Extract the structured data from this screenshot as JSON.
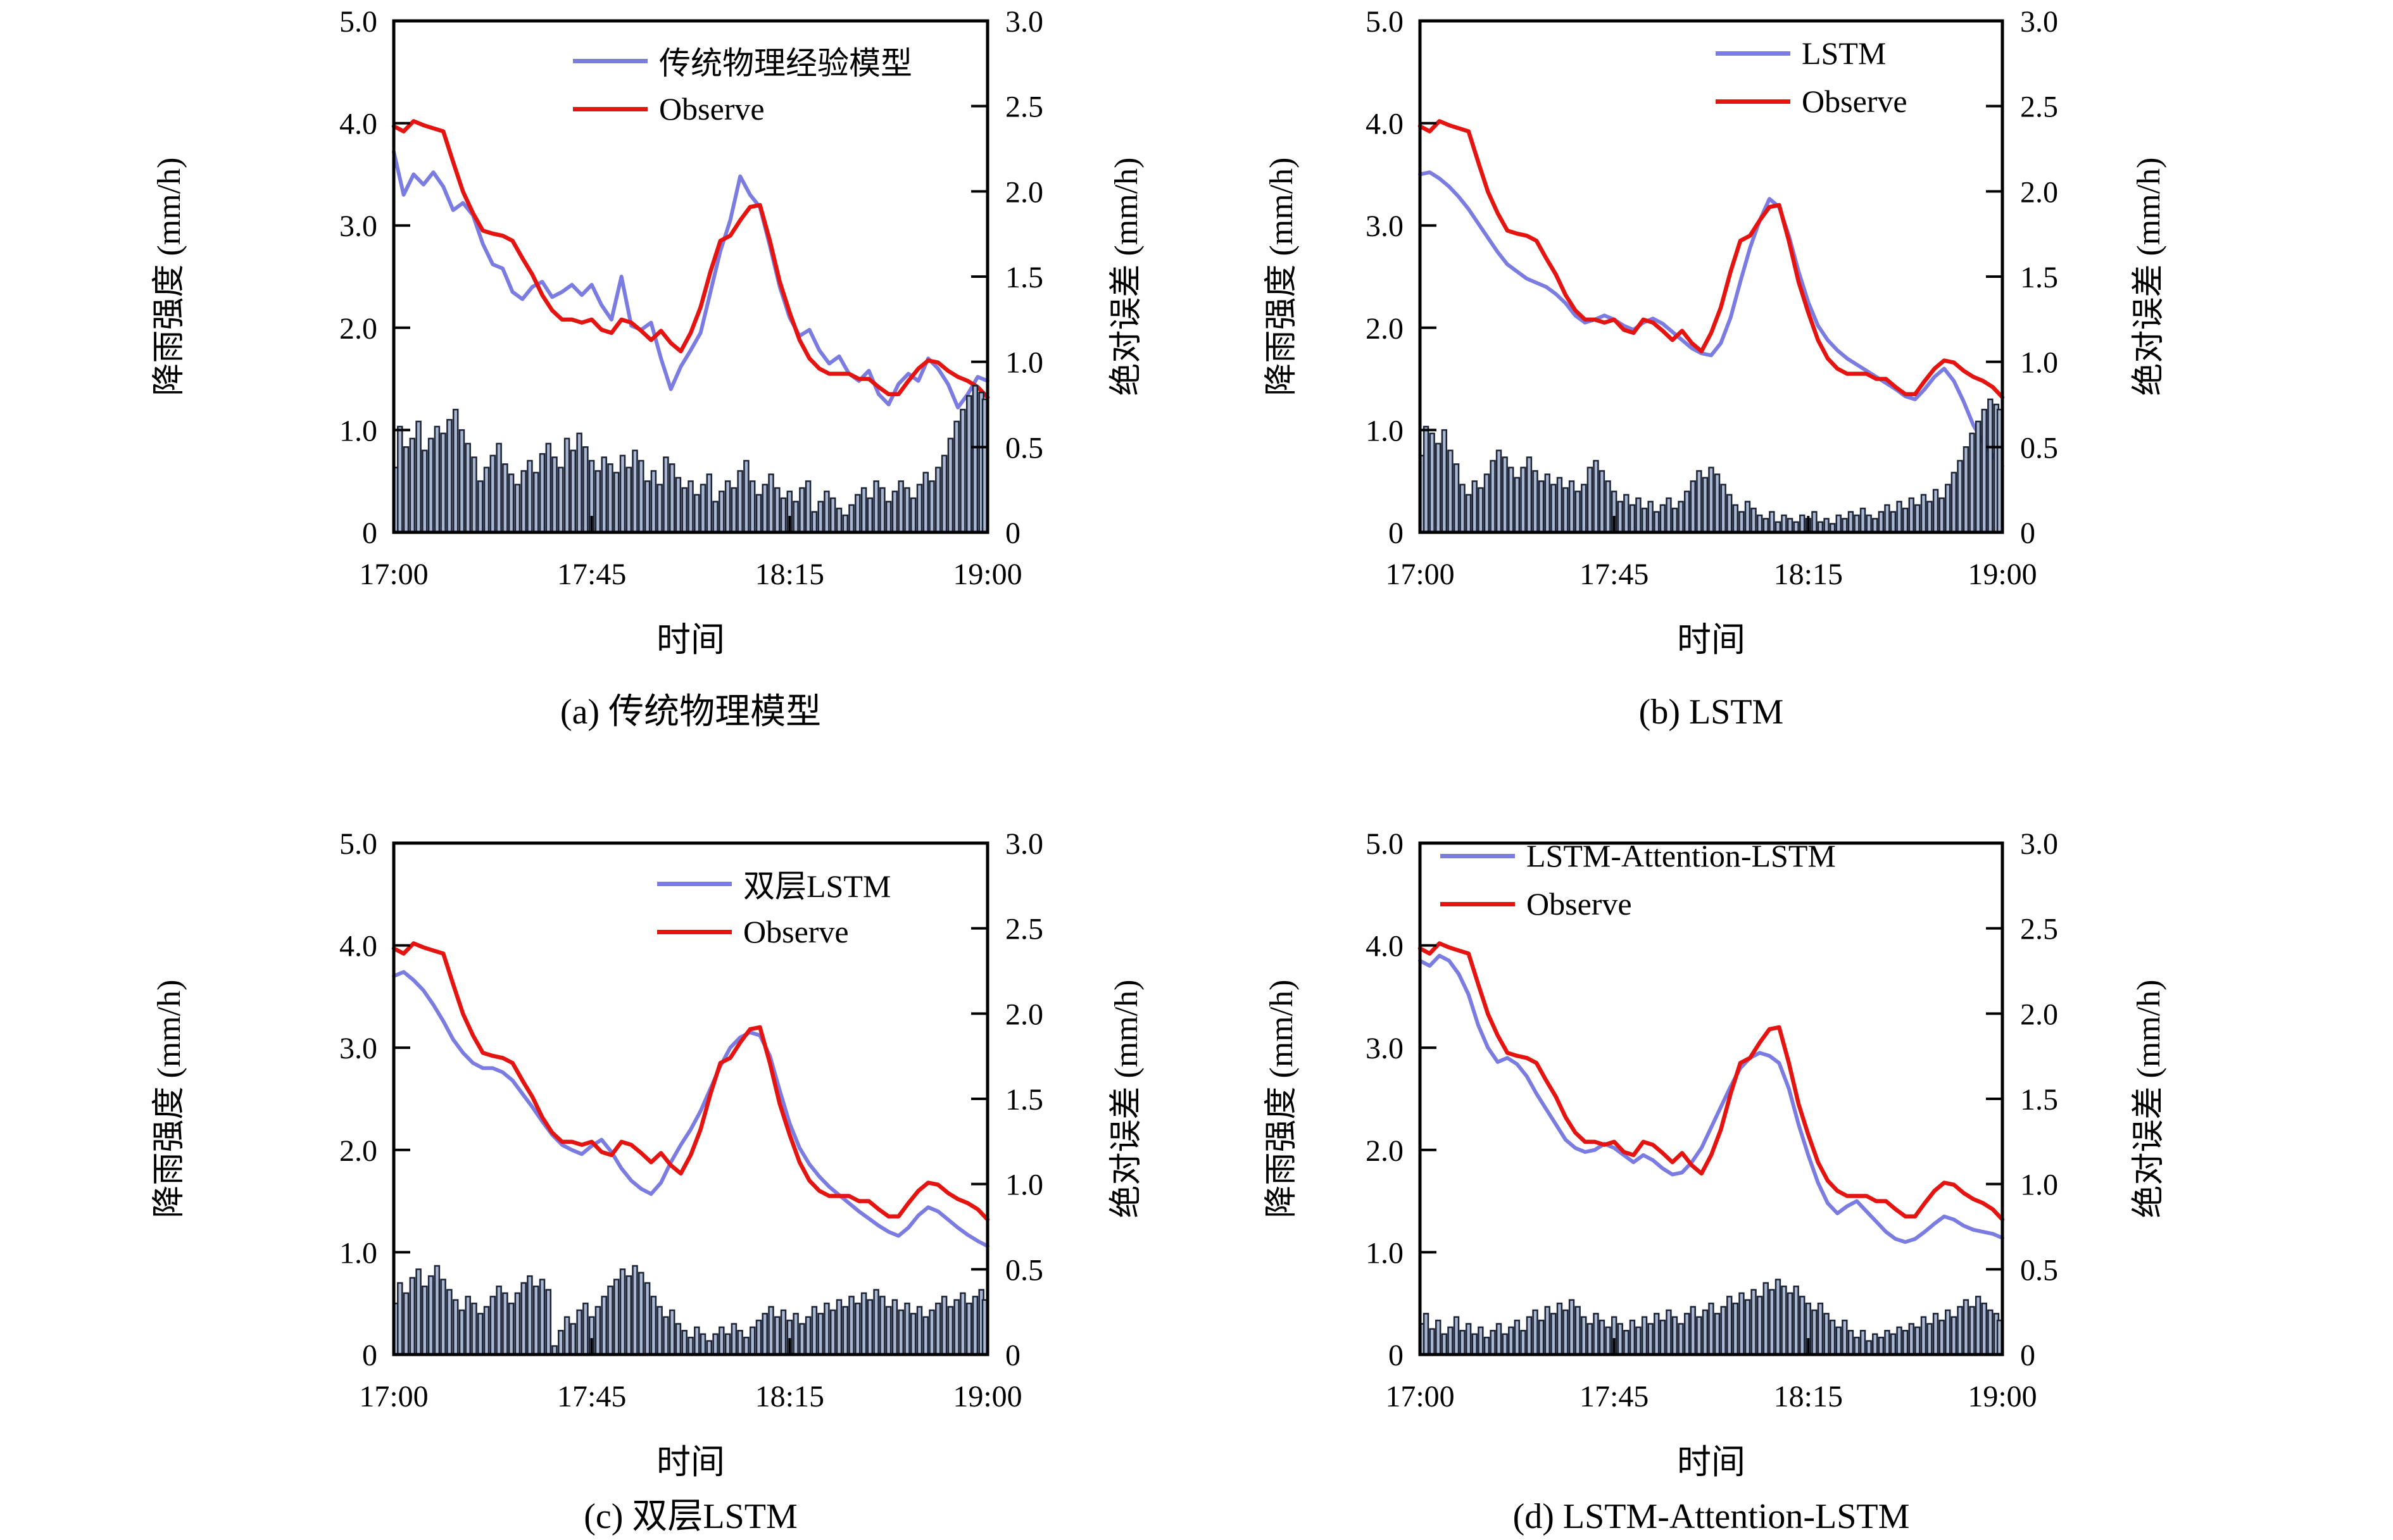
{
  "figure": {
    "xlabel": "时间",
    "ylabel_left": "降雨强度 (mm/h)",
    "ylabel_right": "绝对误差 (mm/h)",
    "x_ticks": [
      "17:00",
      "17:45",
      "18:15",
      "19:00"
    ],
    "y_ticks_left": [
      "5.0",
      "4.0",
      "3.0",
      "2.0",
      "1.0",
      "0"
    ],
    "y_ticks_right": [
      "3.0",
      "2.5",
      "2.0",
      "1.5",
      "1.0",
      "0.5",
      "0"
    ],
    "colors": {
      "model_line": "#7b7ce1",
      "observe_line": "#e51410",
      "bar_fill": "#a8b6d2",
      "bar_stroke": "#1a2233",
      "axis": "#000000"
    }
  },
  "chart_data": [
    {
      "id": "a",
      "type": "line+bar",
      "caption": "(a) 传统物理模型",
      "legend": [
        "传统物理经验模型",
        "Observe"
      ],
      "x_range": [
        "17:00",
        "19:00"
      ],
      "ylim_left": [
        0,
        5.0
      ],
      "ylim_right": [
        0,
        3.0
      ],
      "model_values": [
        3.72,
        3.3,
        3.5,
        3.4,
        3.52,
        3.38,
        3.15,
        3.22,
        3.1,
        2.82,
        2.62,
        2.58,
        2.35,
        2.28,
        2.4,
        2.45,
        2.3,
        2.35,
        2.42,
        2.32,
        2.42,
        2.22,
        2.08,
        2.5,
        2.02,
        1.98,
        2.05,
        1.7,
        1.4,
        1.62,
        1.78,
        1.95,
        2.35,
        2.75,
        3.05,
        3.48,
        3.3,
        3.18,
        2.8,
        2.4,
        2.1,
        1.92,
        1.98,
        1.78,
        1.65,
        1.72,
        1.55,
        1.48,
        1.58,
        1.35,
        1.25,
        1.45,
        1.55,
        1.48,
        1.7,
        1.6,
        1.45,
        1.22,
        1.35,
        1.52,
        1.48
      ],
      "error_values": [
        0.38,
        0.62,
        0.5,
        0.55,
        0.65,
        0.48,
        0.55,
        0.62,
        0.58,
        0.66,
        0.72,
        0.6,
        0.52,
        0.44,
        0.3,
        0.38,
        0.45,
        0.52,
        0.4,
        0.34,
        0.28,
        0.36,
        0.42,
        0.35,
        0.46,
        0.52,
        0.44,
        0.38,
        0.55,
        0.48,
        0.58,
        0.5,
        0.42,
        0.36,
        0.44,
        0.4,
        0.35,
        0.45,
        0.38,
        0.48,
        0.42,
        0.3,
        0.36,
        0.28,
        0.44,
        0.4,
        0.32,
        0.26,
        0.3,
        0.22,
        0.28,
        0.34,
        0.18,
        0.24,
        0.3,
        0.26,
        0.36,
        0.42,
        0.3,
        0.22,
        0.28,
        0.34,
        0.26,
        0.2,
        0.24,
        0.18,
        0.26,
        0.3,
        0.12,
        0.18,
        0.24,
        0.2,
        0.14,
        0.1,
        0.16,
        0.22,
        0.26,
        0.2,
        0.3,
        0.26,
        0.18,
        0.24,
        0.3,
        0.26,
        0.2,
        0.28,
        0.35,
        0.3,
        0.38,
        0.45,
        0.55,
        0.65,
        0.72,
        0.8,
        0.86,
        0.82,
        0.78
      ]
    },
    {
      "id": "b",
      "type": "line+bar",
      "caption": "(b) LSTM",
      "legend": [
        "LSTM",
        "Observe"
      ],
      "x_range": [
        "17:00",
        "19:00"
      ],
      "ylim_left": [
        0,
        5.0
      ],
      "ylim_right": [
        0,
        3.0
      ],
      "model_values": [
        3.5,
        3.52,
        3.46,
        3.38,
        3.28,
        3.16,
        3.02,
        2.88,
        2.74,
        2.62,
        2.55,
        2.48,
        2.44,
        2.4,
        2.33,
        2.24,
        2.12,
        2.05,
        2.08,
        2.12,
        2.08,
        2.02,
        1.98,
        2.05,
        2.09,
        2.04,
        1.96,
        1.88,
        1.8,
        1.75,
        1.73,
        1.85,
        2.1,
        2.45,
        2.78,
        3.05,
        3.26,
        3.18,
        2.9,
        2.55,
        2.25,
        2.02,
        1.88,
        1.78,
        1.7,
        1.64,
        1.58,
        1.52,
        1.46,
        1.4,
        1.33,
        1.3,
        1.4,
        1.52,
        1.6,
        1.48,
        1.28,
        1.05,
        0.88,
        0.75,
        0.65
      ],
      "error_values": [
        0.45,
        0.62,
        0.58,
        0.52,
        0.6,
        0.48,
        0.4,
        0.28,
        0.22,
        0.3,
        0.26,
        0.34,
        0.42,
        0.48,
        0.44,
        0.38,
        0.32,
        0.38,
        0.44,
        0.36,
        0.3,
        0.34,
        0.28,
        0.32,
        0.26,
        0.3,
        0.24,
        0.28,
        0.38,
        0.42,
        0.36,
        0.3,
        0.24,
        0.18,
        0.22,
        0.16,
        0.2,
        0.14,
        0.18,
        0.12,
        0.16,
        0.2,
        0.14,
        0.18,
        0.24,
        0.3,
        0.36,
        0.32,
        0.38,
        0.34,
        0.28,
        0.22,
        0.16,
        0.12,
        0.18,
        0.14,
        0.1,
        0.08,
        0.12,
        0.06,
        0.1,
        0.08,
        0.06,
        0.1,
        0.08,
        0.12,
        0.06,
        0.08,
        0.05,
        0.1,
        0.08,
        0.12,
        0.1,
        0.14,
        0.1,
        0.08,
        0.12,
        0.16,
        0.12,
        0.18,
        0.14,
        0.2,
        0.16,
        0.22,
        0.18,
        0.25,
        0.2,
        0.28,
        0.35,
        0.42,
        0.5,
        0.58,
        0.65,
        0.72,
        0.78,
        0.75,
        0.72
      ]
    },
    {
      "id": "c",
      "type": "line+bar",
      "caption": "(c) 双层LSTM",
      "legend": [
        "双层LSTM",
        "Observe"
      ],
      "x_range": [
        "17:00",
        "19:00"
      ],
      "ylim_left": [
        0,
        5.0
      ],
      "ylim_right": [
        0,
        3.0
      ],
      "model_values": [
        3.7,
        3.74,
        3.66,
        3.56,
        3.42,
        3.26,
        3.08,
        2.95,
        2.85,
        2.8,
        2.8,
        2.76,
        2.68,
        2.55,
        2.42,
        2.28,
        2.15,
        2.05,
        2.0,
        1.96,
        2.04,
        2.1,
        1.98,
        1.82,
        1.7,
        1.62,
        1.57,
        1.68,
        1.88,
        2.05,
        2.2,
        2.38,
        2.6,
        2.82,
        3.0,
        3.1,
        3.15,
        3.12,
        2.92,
        2.58,
        2.26,
        2.02,
        1.86,
        1.74,
        1.64,
        1.56,
        1.48,
        1.4,
        1.33,
        1.26,
        1.2,
        1.16,
        1.24,
        1.36,
        1.44,
        1.4,
        1.32,
        1.24,
        1.17,
        1.11,
        1.06
      ],
      "error_values": [
        0.3,
        0.42,
        0.36,
        0.45,
        0.5,
        0.4,
        0.46,
        0.52,
        0.44,
        0.38,
        0.32,
        0.26,
        0.34,
        0.3,
        0.24,
        0.28,
        0.34,
        0.4,
        0.36,
        0.3,
        0.36,
        0.42,
        0.46,
        0.4,
        0.44,
        0.38,
        0.05,
        0.14,
        0.22,
        0.18,
        0.26,
        0.3,
        0.22,
        0.28,
        0.34,
        0.4,
        0.44,
        0.5,
        0.46,
        0.52,
        0.48,
        0.42,
        0.34,
        0.28,
        0.22,
        0.26,
        0.18,
        0.14,
        0.1,
        0.16,
        0.12,
        0.08,
        0.12,
        0.16,
        0.12,
        0.18,
        0.14,
        0.1,
        0.16,
        0.2,
        0.24,
        0.28,
        0.22,
        0.26,
        0.2,
        0.24,
        0.18,
        0.22,
        0.28,
        0.24,
        0.3,
        0.26,
        0.32,
        0.28,
        0.34,
        0.3,
        0.36,
        0.32,
        0.38,
        0.34,
        0.28,
        0.32,
        0.26,
        0.3,
        0.24,
        0.28,
        0.22,
        0.26,
        0.3,
        0.34,
        0.28,
        0.32,
        0.36,
        0.3,
        0.34,
        0.38,
        0.32
      ]
    },
    {
      "id": "d",
      "type": "line+bar",
      "caption": "(d) LSTM-Attention-LSTM",
      "legend": [
        "LSTM-Attention-LSTM",
        "Observe"
      ],
      "x_range": [
        "17:00",
        "19:00"
      ],
      "ylim_left": [
        0,
        5.0
      ],
      "ylim_right": [
        0,
        3.0
      ],
      "model_values": [
        3.85,
        3.8,
        3.9,
        3.85,
        3.72,
        3.52,
        3.22,
        3.0,
        2.86,
        2.9,
        2.84,
        2.72,
        2.55,
        2.4,
        2.25,
        2.1,
        2.02,
        1.98,
        2.0,
        2.06,
        2.02,
        1.95,
        1.88,
        1.95,
        1.9,
        1.82,
        1.76,
        1.78,
        1.88,
        2.02,
        2.22,
        2.42,
        2.62,
        2.8,
        2.9,
        2.95,
        2.92,
        2.85,
        2.6,
        2.25,
        1.95,
        1.68,
        1.48,
        1.38,
        1.45,
        1.5,
        1.4,
        1.3,
        1.2,
        1.13,
        1.1,
        1.13,
        1.2,
        1.28,
        1.35,
        1.32,
        1.26,
        1.22,
        1.2,
        1.18,
        1.14
      ],
      "error_values": [
        0.18,
        0.24,
        0.15,
        0.2,
        0.12,
        0.16,
        0.22,
        0.14,
        0.18,
        0.12,
        0.16,
        0.1,
        0.14,
        0.18,
        0.12,
        0.16,
        0.2,
        0.14,
        0.22,
        0.26,
        0.2,
        0.28,
        0.24,
        0.3,
        0.26,
        0.32,
        0.28,
        0.22,
        0.18,
        0.24,
        0.2,
        0.16,
        0.22,
        0.18,
        0.14,
        0.2,
        0.16,
        0.22,
        0.18,
        0.24,
        0.2,
        0.26,
        0.22,
        0.18,
        0.24,
        0.28,
        0.22,
        0.26,
        0.3,
        0.24,
        0.28,
        0.34,
        0.3,
        0.36,
        0.32,
        0.38,
        0.34,
        0.42,
        0.38,
        0.44,
        0.4,
        0.36,
        0.4,
        0.34,
        0.3,
        0.26,
        0.3,
        0.24,
        0.2,
        0.16,
        0.2,
        0.14,
        0.1,
        0.14,
        0.08,
        0.12,
        0.1,
        0.14,
        0.12,
        0.16,
        0.14,
        0.18,
        0.16,
        0.22,
        0.18,
        0.24,
        0.2,
        0.26,
        0.22,
        0.28,
        0.32,
        0.28,
        0.34,
        0.3,
        0.26,
        0.24,
        0.2
      ]
    }
  ],
  "observe_values": [
    3.97,
    3.92,
    4.02,
    3.98,
    3.95,
    3.92,
    3.62,
    3.33,
    3.12,
    2.95,
    2.92,
    2.9,
    2.85,
    2.68,
    2.52,
    2.32,
    2.17,
    2.08,
    2.08,
    2.05,
    2.08,
    1.98,
    1.95,
    2.08,
    2.05,
    1.97,
    1.88,
    1.97,
    1.85,
    1.77,
    1.95,
    2.2,
    2.55,
    2.85,
    2.9,
    3.05,
    3.18,
    3.2,
    2.85,
    2.45,
    2.15,
    1.88,
    1.7,
    1.6,
    1.55,
    1.55,
    1.55,
    1.5,
    1.5,
    1.42,
    1.35,
    1.35,
    1.48,
    1.6,
    1.68,
    1.66,
    1.58,
    1.52,
    1.48,
    1.42,
    1.32
  ]
}
